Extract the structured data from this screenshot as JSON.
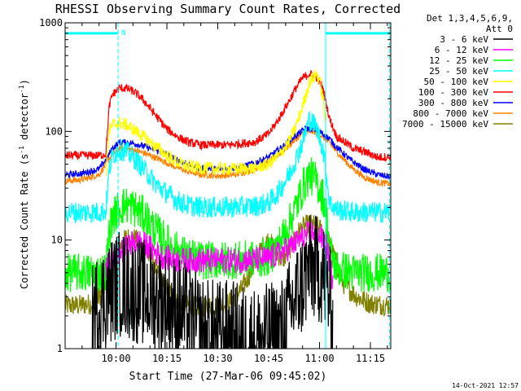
{
  "chart_data": {
    "type": "line",
    "title": "RHESSI Observing Summary Count Rates, Corrected",
    "xlabel": "Start Time (27-Mar-06 09:45:02)",
    "ylabel_main": "Corrected Count Rate (s",
    "ylabel_sup1": "-1",
    "ylabel_mid": " detector",
    "ylabel_sup2": "-1",
    "ylabel_end": ")",
    "y_scale": "log",
    "ylim": [
      1,
      1000
    ],
    "xlim_minutes": [
      0,
      96
    ],
    "y_ticks": [
      {
        "value": 1,
        "label": "1"
      },
      {
        "value": 10,
        "label": "10"
      },
      {
        "value": 100,
        "label": "100"
      },
      {
        "value": 1000,
        "label": "1000"
      }
    ],
    "x_ticks": [
      {
        "minute": 15,
        "label": "10:00"
      },
      {
        "minute": 30,
        "label": "10:15"
      },
      {
        "minute": 45,
        "label": "10:30"
      },
      {
        "minute": 60,
        "label": "10:45"
      },
      {
        "minute": 75,
        "label": "11:00"
      },
      {
        "minute": 90,
        "label": "11:15"
      }
    ],
    "legend": {
      "placement": "right",
      "header_lines": [
        "Det 1,3,4,5,6,9,",
        "Att 0"
      ],
      "entries": [
        {
          "label": "3 - 6 keV",
          "color": "#000000"
        },
        {
          "label": "6 - 12 keV",
          "color": "#ff00ff"
        },
        {
          "label": "12 - 25 keV",
          "color": "#00ff00"
        },
        {
          "label": "25 - 50 keV",
          "color": "#00ffff"
        },
        {
          "label": "50 - 100 keV",
          "color": "#ffff00"
        },
        {
          "label": "100 - 300 keV",
          "color": "#ff0000"
        },
        {
          "label": "300 - 800 keV",
          "color": "#0000ff"
        },
        {
          "label": "800 - 7000 keV",
          "color": "#ff8000"
        },
        {
          "label": "7000 - 15000 keV",
          "color": "#808000"
        }
      ]
    },
    "annotations": {
      "night_marker_label": "N",
      "night_bars": [
        [
          0,
          15.6
        ],
        [
          76.8,
          96
        ]
      ],
      "night_bar_level": 800,
      "vertical_lines_minutes": [
        15.6,
        76.8,
        95.6
      ],
      "solid_line_minutes": [
        76.8
      ],
      "timestamp": "14-Oct-2021 12:57"
    },
    "series": [
      {
        "name": "3 - 6 keV",
        "color": "#000000",
        "x": [
          8,
          10,
          12,
          14,
          16,
          18,
          20,
          22,
          25,
          28,
          31,
          34,
          37,
          40,
          44,
          48,
          52,
          56,
          60,
          64,
          67,
          70,
          72,
          74,
          76,
          78,
          79
        ],
        "y": [
          2.0,
          2.5,
          3.0,
          3.6,
          4.0,
          3.8,
          3.5,
          3.4,
          3.0,
          2.8,
          2.5,
          2.2,
          1.8,
          1.5,
          1.4,
          1.4,
          1.3,
          1.2,
          1.3,
          1.5,
          2.5,
          4.0,
          5.5,
          5.5,
          5.0,
          3.0,
          1.5
        ]
      },
      {
        "name": "6 - 12 keV",
        "color": "#ff00ff",
        "x": [
          12,
          14,
          16,
          18,
          20,
          22,
          24,
          26,
          28,
          30,
          34,
          40,
          48,
          56,
          60,
          63,
          66,
          69,
          71,
          73,
          75,
          77,
          78,
          79
        ],
        "y": [
          5.5,
          6.5,
          7.5,
          8.5,
          9.5,
          9.5,
          9.0,
          8.0,
          7.2,
          6.8,
          6.5,
          6.5,
          6.5,
          6.6,
          6.8,
          7.5,
          8.5,
          10.0,
          11.0,
          12.0,
          11.0,
          9.0,
          6.0,
          4.0
        ]
      },
      {
        "name": "12 - 25 keV",
        "color": "#00ff00",
        "x": [
          0,
          10,
          12,
          13,
          14,
          16,
          18,
          20,
          22,
          24,
          26,
          28,
          30,
          33,
          36,
          40,
          48,
          56,
          60,
          63,
          66,
          68,
          70,
          72,
          74,
          76,
          77,
          78,
          80,
          85,
          90,
          96
        ],
        "y": [
          5.0,
          5.0,
          5.2,
          12.0,
          16.0,
          20.0,
          21.0,
          20.0,
          18.0,
          16.0,
          13.0,
          11.0,
          9.5,
          8.0,
          7.0,
          6.5,
          6.5,
          6.6,
          7.0,
          9.0,
          14.0,
          20.0,
          30.0,
          40.0,
          35.0,
          25.0,
          18.0,
          8.0,
          5.5,
          5.0,
          5.0,
          5.0
        ]
      },
      {
        "name": "25 - 50 keV",
        "color": "#00ffff",
        "x": [
          0,
          10,
          12,
          13,
          14,
          16,
          18,
          20,
          22,
          24,
          26,
          28,
          30,
          33,
          36,
          40,
          48,
          56,
          60,
          63,
          66,
          68,
          70,
          72,
          74,
          76,
          77,
          78,
          80,
          85,
          90,
          96
        ],
        "y": [
          18.0,
          18.0,
          18.5,
          45.0,
          60.0,
          68.0,
          65.0,
          58.0,
          50.0,
          42.0,
          35.0,
          30.0,
          27.0,
          23.0,
          21.0,
          20.0,
          20.0,
          20.5,
          22.0,
          28.0,
          40.0,
          55.0,
          80.0,
          130.0,
          110.0,
          70.0,
          40.0,
          22.0,
          19.0,
          18.0,
          18.0,
          18.0
        ]
      },
      {
        "name": "50 - 100 keV",
        "color": "#ffff00",
        "x": [
          12,
          13,
          14,
          16,
          18,
          20,
          22,
          24,
          26,
          28,
          30,
          33,
          36,
          40,
          48,
          56,
          60,
          63,
          66,
          68,
          70,
          72,
          74,
          75,
          76,
          77
        ],
        "y": [
          40.0,
          100.0,
          115.0,
          120.0,
          115.0,
          105.0,
          95.0,
          85.0,
          75.0,
          68.0,
          60.0,
          52.0,
          48.0,
          46.0,
          45.0,
          46.0,
          50.0,
          60.0,
          80.0,
          110.0,
          170.0,
          280.0,
          340.0,
          300.0,
          200.0,
          110.0
        ]
      },
      {
        "name": "100 - 300 keV",
        "color": "#ff0000",
        "x": [
          0,
          10,
          12,
          13,
          14,
          16,
          18,
          20,
          22,
          24,
          26,
          28,
          30,
          33,
          36,
          40,
          48,
          56,
          60,
          63,
          66,
          68,
          70,
          72,
          74,
          76,
          78,
          80,
          85,
          90,
          92,
          96
        ],
        "y": [
          60.0,
          60.0,
          62.0,
          170.0,
          220.0,
          250.0,
          250.0,
          235.0,
          210.0,
          180.0,
          150.0,
          125.0,
          105.0,
          90.0,
          80.0,
          75.0,
          75.0,
          80.0,
          95.0,
          130.0,
          190.0,
          250.0,
          310.0,
          340.0,
          320.0,
          250.0,
          130.0,
          90.0,
          70.0,
          62.0,
          58.0,
          58.0
        ]
      },
      {
        "name": "300 - 800 keV",
        "color": "#0000ff",
        "x": [
          0,
          5,
          10,
          12,
          14,
          16,
          20,
          24,
          28,
          32,
          36,
          40,
          45,
          50,
          55,
          60,
          64,
          68,
          71,
          73,
          75,
          78,
          80,
          84,
          88,
          92,
          96
        ],
        "y": [
          40.0,
          41.0,
          45.0,
          55.0,
          70.0,
          80.0,
          78.0,
          72.0,
          65.0,
          57.0,
          50.0,
          46.0,
          45.0,
          46.0,
          50.0,
          58.0,
          72.0,
          92.0,
          106.0,
          106.0,
          100.0,
          85.0,
          72.0,
          55.0,
          45.0,
          40.0,
          38.0
        ]
      },
      {
        "name": "800 - 7000 keV",
        "color": "#ff8000",
        "x": [
          0,
          5,
          10,
          12,
          14,
          16,
          20,
          24,
          28,
          32,
          36,
          40,
          45,
          50,
          55,
          60,
          64,
          68,
          71,
          73,
          75,
          78,
          80,
          84,
          88,
          92,
          96
        ],
        "y": [
          35.0,
          36.0,
          40.0,
          50.0,
          62.0,
          70.0,
          68.0,
          62.0,
          55.0,
          48.0,
          43.0,
          40.0,
          39.0,
          40.0,
          44.0,
          52.0,
          65.0,
          85.0,
          100.0,
          100.0,
          95.0,
          78.0,
          65.0,
          48.0,
          38.0,
          34.0,
          33.0
        ]
      },
      {
        "name": "7000 - 15000 keV",
        "color": "#808000",
        "x": [
          0,
          4,
          8,
          10,
          12,
          14,
          16,
          18,
          20,
          22,
          24,
          26,
          28,
          30,
          33,
          36,
          40,
          44,
          48,
          52,
          56,
          58,
          60,
          62,
          64,
          66,
          68,
          70,
          72,
          74,
          76,
          78,
          80,
          82,
          86,
          90,
          96
        ],
        "y": [
          2.5,
          2.5,
          2.6,
          3.0,
          4.0,
          6.0,
          8.5,
          10.5,
          10.5,
          9.5,
          7.5,
          6.0,
          4.5,
          3.5,
          2.8,
          2.5,
          2.4,
          2.5,
          2.6,
          3.5,
          6.0,
          8.5,
          10.0,
          8.0,
          6.5,
          8.0,
          11.0,
          13.0,
          14.0,
          13.5,
          12.0,
          9.0,
          6.0,
          4.0,
          3.0,
          2.6,
          2.5
        ]
      }
    ]
  }
}
